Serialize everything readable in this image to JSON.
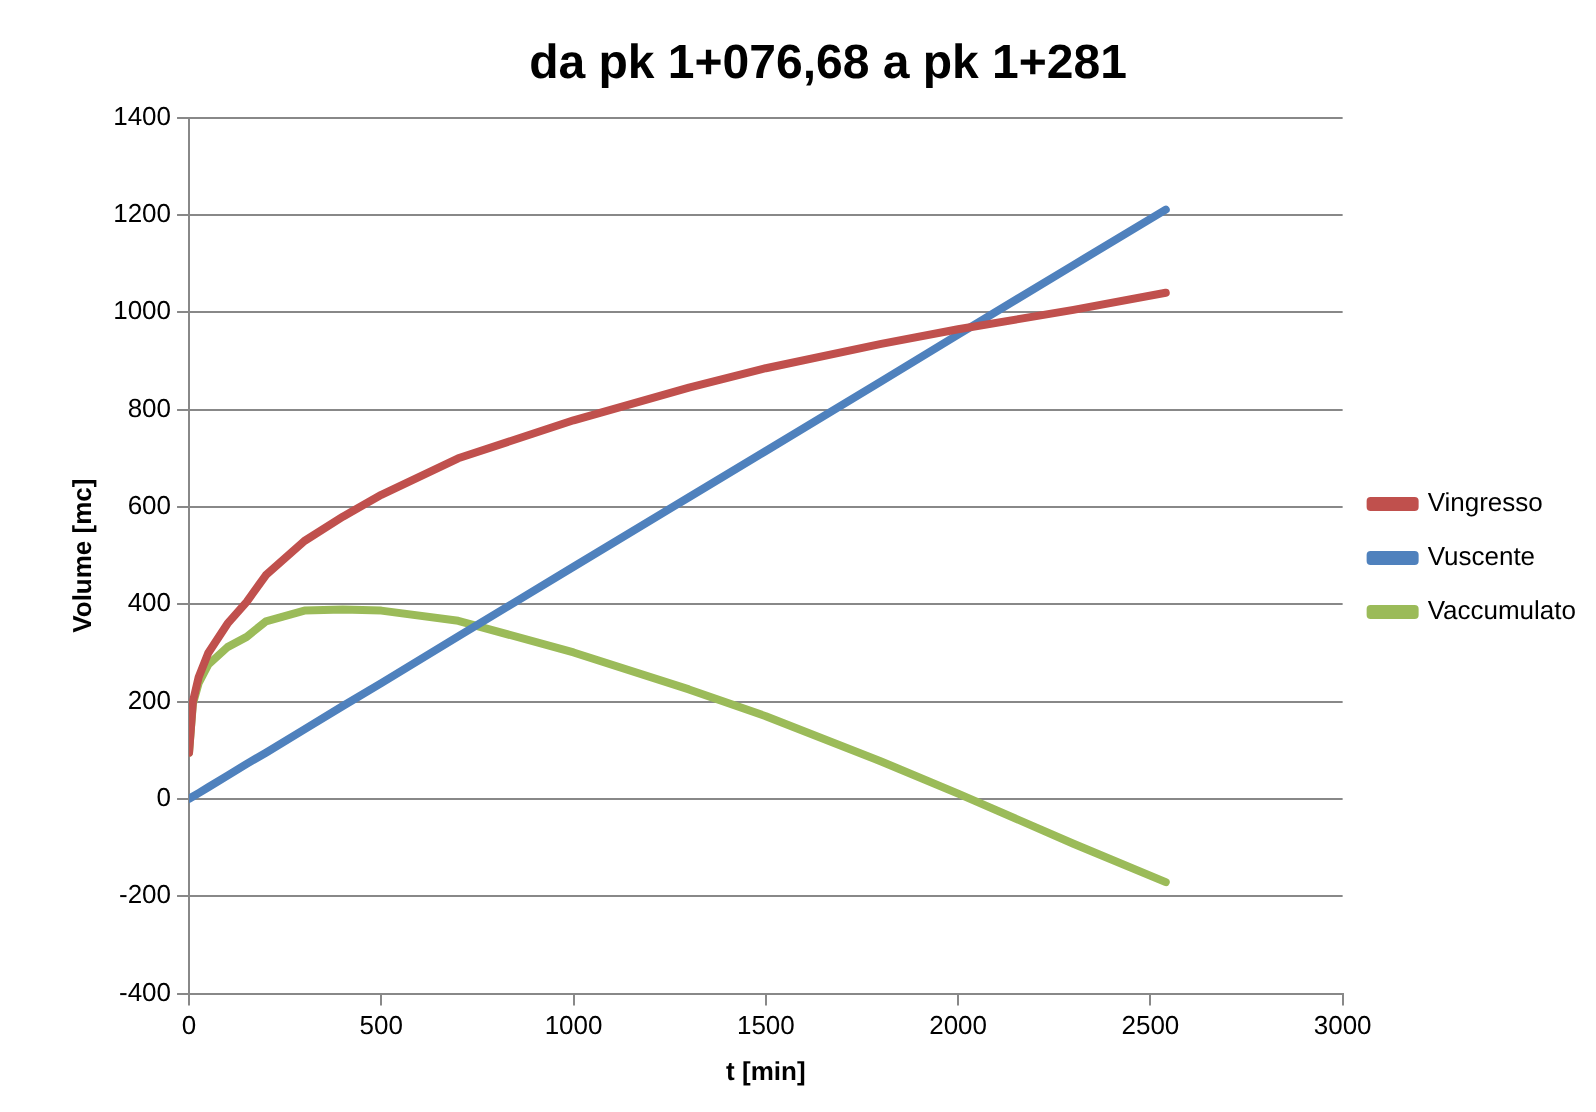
{
  "chart_data": {
    "type": "line",
    "title": "da pk 1+076,68 a pk 1+281",
    "xlabel": "t [min]",
    "ylabel": "Volume [mc]",
    "x": [
      0,
      10,
      25,
      50,
      100,
      150,
      200,
      300,
      400,
      500,
      700,
      1000,
      1300,
      1500,
      1800,
      2000,
      2300,
      2540
    ],
    "series": [
      {
        "name": "Vingresso",
        "color": "#c0504d",
        "values": [
          95,
          200,
          250,
          300,
          360,
          405,
          460,
          530,
          580,
          625,
          700,
          778,
          845,
          885,
          935,
          965,
          1005,
          1040
        ]
      },
      {
        "name": "Vuscente",
        "color": "#4f81bd",
        "values": [
          0,
          5,
          12,
          24,
          48,
          72,
          95,
          143,
          191,
          238,
          334,
          477,
          620,
          715,
          858,
          954,
          1097,
          1211
        ]
      },
      {
        "name": "Vaccumulato",
        "color": "#9bbb59",
        "values": [
          95,
          195,
          238,
          276,
          312,
          333,
          365,
          387,
          389,
          387,
          366,
          301,
          225,
          170,
          77,
          11,
          -92,
          -171
        ]
      }
    ],
    "xlim": [
      0,
      3000
    ],
    "xticks": [
      0,
      500,
      1000,
      1500,
      2000,
      2500,
      3000
    ],
    "ylim": [
      -400,
      1400
    ],
    "yticks": [
      -400,
      -200,
      0,
      200,
      400,
      600,
      800,
      1000,
      1200,
      1400
    ],
    "grid": "y",
    "legend": "right",
    "line_style": "solid"
  }
}
